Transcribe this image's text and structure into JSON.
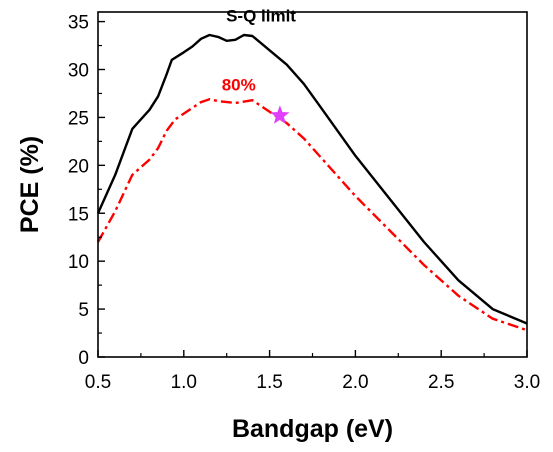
{
  "chart_data": {
    "type": "line",
    "xlabel": "Bandgap (eV)",
    "ylabel": "PCE (%)",
    "xlim": [
      0.5,
      3.0
    ],
    "ylim": [
      0,
      36
    ],
    "xticks": [
      0.5,
      1.0,
      1.5,
      2.0,
      2.5,
      3.0
    ],
    "xtick_labels": [
      "0.5",
      "1.0",
      "1.5",
      "2.0",
      "2.5",
      "3.0"
    ],
    "yticks": [
      0,
      5,
      10,
      15,
      20,
      25,
      30,
      35
    ],
    "ytick_labels": [
      "0",
      "5",
      "10",
      "15",
      "20",
      "25",
      "30",
      "35"
    ],
    "grid": false,
    "series": [
      {
        "name": "S-Q limit",
        "color": "#000000",
        "style": "solid",
        "x": [
          0.5,
          0.6,
          0.7,
          0.8,
          0.85,
          0.9,
          0.93,
          1.0,
          1.05,
          1.1,
          1.15,
          1.2,
          1.25,
          1.3,
          1.35,
          1.4,
          1.5,
          1.6,
          1.7,
          1.8,
          2.0,
          2.2,
          2.4,
          2.6,
          2.8,
          3.0
        ],
        "y": [
          15.0,
          19.0,
          23.8,
          25.8,
          27.2,
          29.5,
          31.0,
          31.8,
          32.4,
          33.2,
          33.6,
          33.4,
          33.0,
          33.1,
          33.6,
          33.5,
          32.0,
          30.5,
          28.5,
          26.0,
          21.0,
          16.5,
          12.0,
          8.0,
          5.0,
          3.5
        ]
      },
      {
        "name": "80%",
        "color": "#ff0000",
        "style": "dash-dot",
        "x": [
          0.5,
          0.6,
          0.7,
          0.8,
          0.85,
          0.9,
          0.95,
          1.0,
          1.1,
          1.15,
          1.2,
          1.3,
          1.4,
          1.5,
          1.6,
          1.7,
          1.8,
          2.0,
          2.2,
          2.4,
          2.6,
          2.8,
          3.0
        ],
        "y": [
          12.0,
          15.2,
          19.0,
          20.6,
          21.8,
          23.6,
          24.8,
          25.4,
          26.6,
          26.9,
          26.7,
          26.5,
          26.8,
          25.6,
          24.4,
          22.8,
          20.8,
          16.8,
          13.2,
          9.6,
          6.4,
          4.0,
          2.8
        ]
      }
    ],
    "marker": {
      "shape": "star",
      "x": 1.56,
      "y": 25.2,
      "color": "#e040fb"
    },
    "annotations": [
      {
        "text": "S-Q limit",
        "x": 1.45,
        "y": 35.0,
        "color": "#000000"
      },
      {
        "text": "80%",
        "x": 1.32,
        "y": 27.8,
        "color": "#ff0000"
      }
    ]
  }
}
